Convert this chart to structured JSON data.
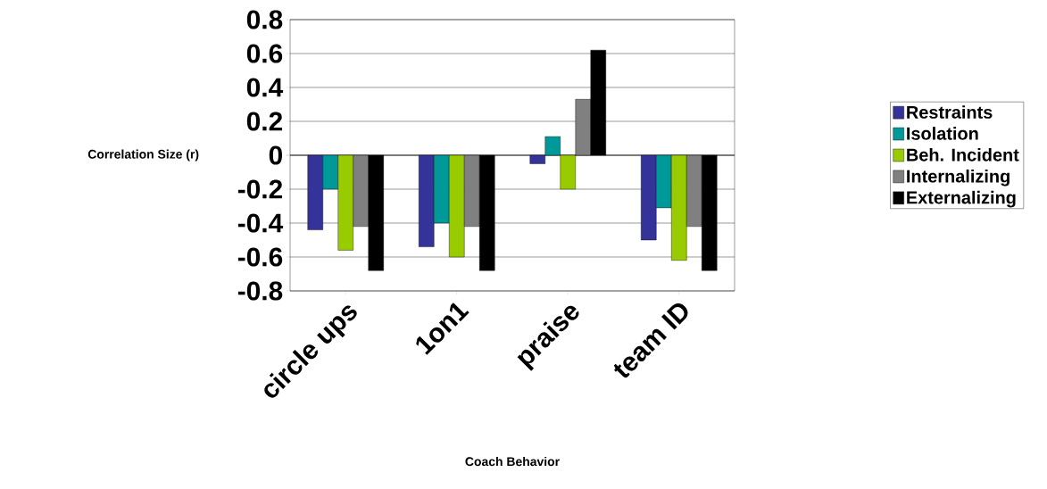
{
  "chart_data": {
    "type": "bar",
    "xlabel": "Coach Behavior",
    "ylabel": "Correlation Size (r)",
    "categories": [
      "circle ups",
      "1on1",
      "praise",
      "team ID"
    ],
    "series": [
      {
        "name": "Restraints",
        "color": "#333399",
        "values": [
          -0.44,
          -0.54,
          -0.05,
          -0.5
        ]
      },
      {
        "name": "Isolation",
        "color": "#009999",
        "values": [
          -0.2,
          -0.4,
          0.11,
          -0.31
        ]
      },
      {
        "name": "Beh. Incident",
        "color": "#99cc00",
        "values": [
          -0.56,
          -0.6,
          -0.2,
          -0.62
        ]
      },
      {
        "name": "Internalizing",
        "color": "#808080",
        "values": [
          -0.42,
          -0.42,
          0.33,
          -0.42
        ]
      },
      {
        "name": "Externalizing",
        "color": "#000000",
        "values": [
          -0.68,
          -0.68,
          0.62,
          -0.68
        ]
      }
    ],
    "ylim": [
      -0.8,
      0.8
    ],
    "yticks": [
      -0.8,
      -0.6,
      -0.4,
      -0.2,
      0,
      0.2,
      0.4,
      0.6,
      0.8
    ],
    "grid": "y",
    "legend": "right"
  }
}
